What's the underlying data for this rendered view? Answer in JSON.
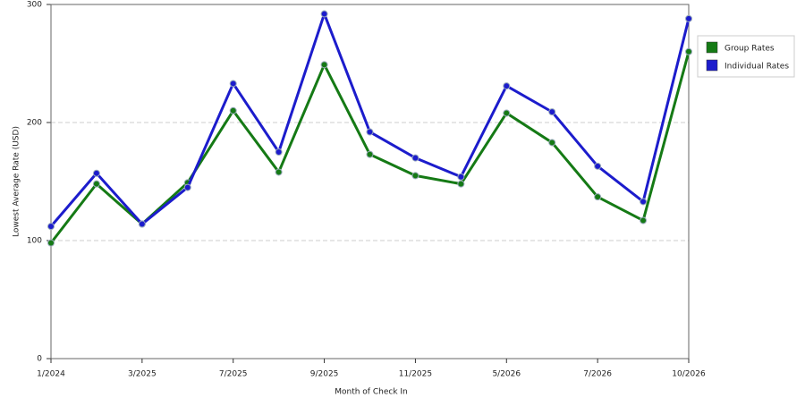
{
  "chart_data": {
    "type": "line",
    "x_label": "Month of Check In",
    "y_label": "Lowest Average Rate (USD)",
    "categories": [
      "1/2024",
      null,
      "3/2025",
      null,
      "7/2025",
      null,
      "9/2025",
      null,
      "11/2025",
      null,
      "5/2026",
      null,
      "7/2026",
      null,
      "10/2026"
    ],
    "series": [
      {
        "name": "Group Rates",
        "color": "#157a15",
        "values": [
          98,
          148,
          114,
          149,
          210,
          158,
          249,
          173,
          155,
          148,
          208,
          183,
          137,
          117,
          260
        ]
      },
      {
        "name": "Individual Rates",
        "color": "#1c1ccc",
        "values": [
          112,
          157,
          114,
          145,
          233,
          175,
          292,
          192,
          170,
          154,
          231,
          209,
          163,
          133,
          288
        ]
      }
    ],
    "ylim": [
      0,
      300
    ],
    "yticks": [
      0,
      100,
      200,
      300
    ],
    "grid": true,
    "legend": "right"
  }
}
